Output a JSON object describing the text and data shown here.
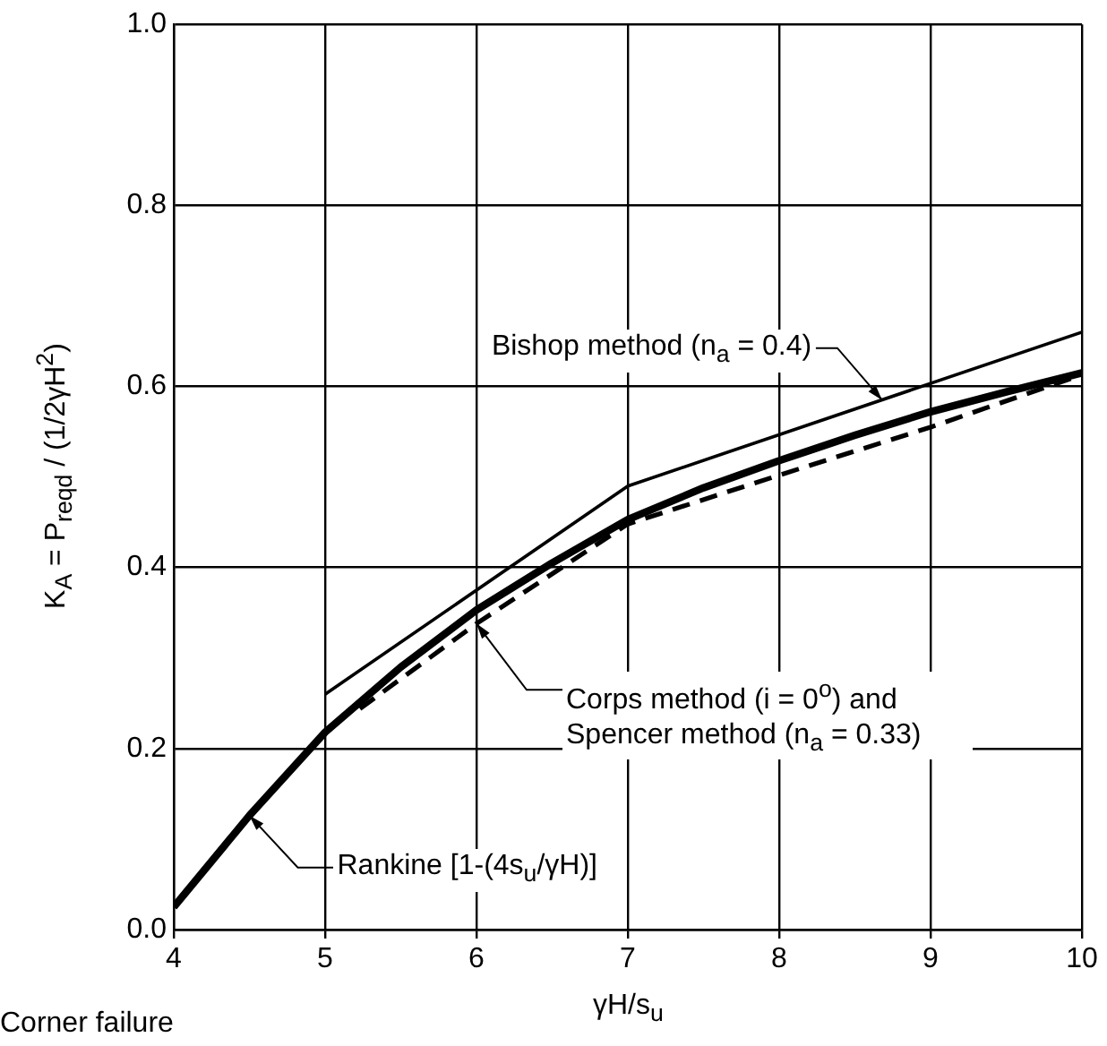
{
  "chart_data": {
    "type": "line",
    "xlabel": "γH/s$_{u}$",
    "ylabel": "K$_{A}$ = P$_{reqd}$ / (1/2γH$^{2}$)",
    "xlim": [
      4,
      10
    ],
    "xticks": [
      4,
      5,
      6,
      7,
      8,
      9,
      10
    ],
    "ylim": [
      0,
      1
    ],
    "yticks": [
      {
        "value": 0,
        "label": "0.0"
      },
      {
        "value": 0.2,
        "label": "0.2"
      },
      {
        "value": 0.4,
        "label": "0.4"
      },
      {
        "value": 0.6,
        "label": "0.6"
      },
      {
        "value": 0.8,
        "label": "0.8"
      },
      {
        "value": 1,
        "label": "1.0"
      }
    ],
    "grid": true,
    "legend": false,
    "marker": "none",
    "series": [
      {
        "color": "#000000",
        "line_style": "solid",
        "x": [
          5,
          7,
          10
        ],
        "values": [
          0.26,
          0.49,
          0.66
        ]
      },
      {
        "color": "#000000",
        "line_style": "solid",
        "x": [
          4,
          4.5,
          5,
          5.5,
          6,
          6.5,
          7,
          7.5,
          8,
          8.5,
          9,
          9.5,
          10
        ],
        "values": [
          0.025,
          0.126,
          0.218,
          0.29,
          0.353,
          0.405,
          0.453,
          0.488,
          0.518,
          0.546,
          0.572,
          0.594,
          0.615
        ]
      },
      {
        "color": "#000000",
        "line_style": "dashed",
        "x": [
          5.23,
          6,
          7,
          8,
          9,
          10
        ],
        "values": [
          0.244,
          0.338,
          0.448,
          0.502,
          0.555,
          0.613
        ]
      }
    ],
    "annotations": [
      {
        "text": "Bishop method (n$_{a}$ = 0.4)",
        "x": 8.68,
        "y": 0.585
      },
      {
        "text": "Corps method (i = 0$^{o}$) and Spencer method (n$_{a}$ = 0.33)",
        "x": 6,
        "y": 0.338
      },
      {
        "text": "Rankine [1-(4s$_{u}$/γH)]",
        "x": 4.5,
        "y": 0.126
      },
      "Corner failure"
    ]
  }
}
